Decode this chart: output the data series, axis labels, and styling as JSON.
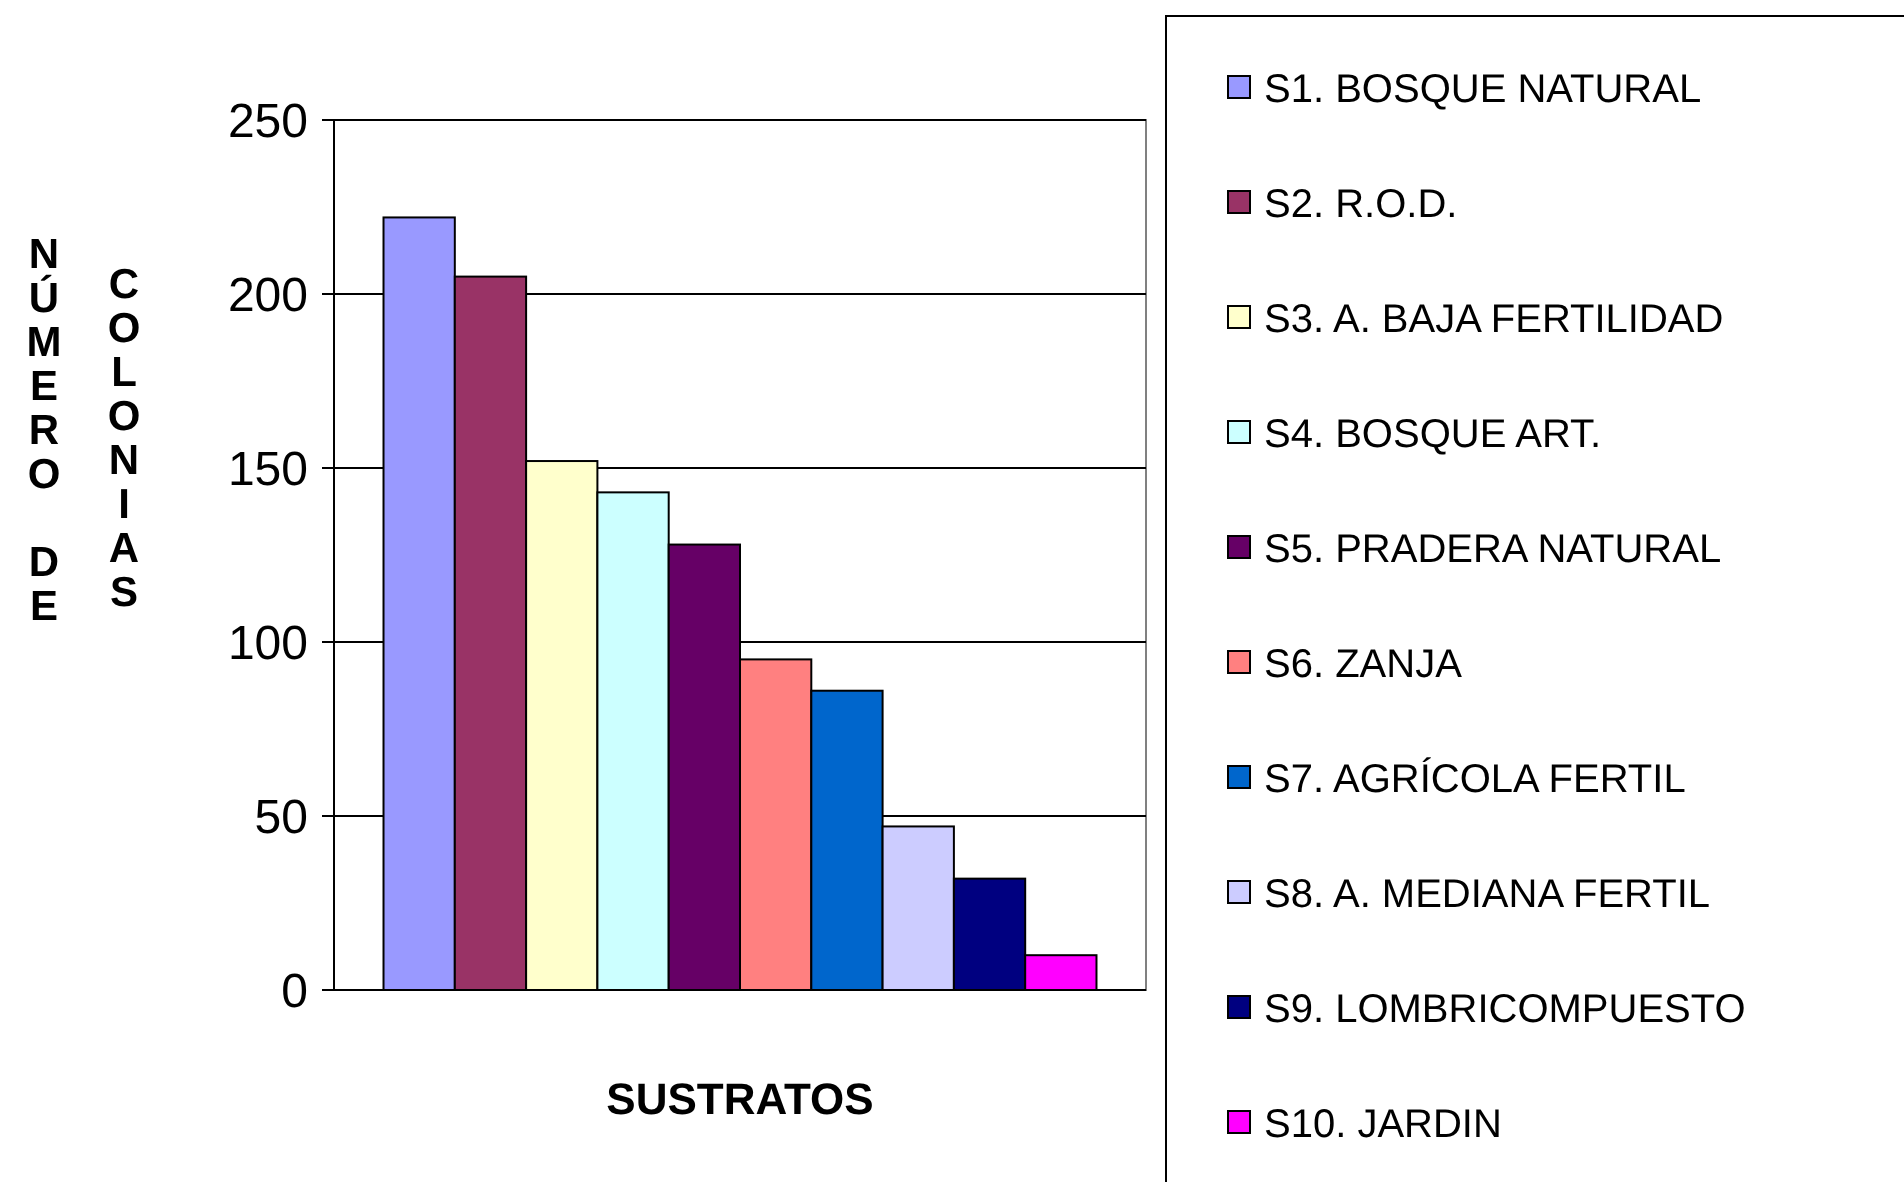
{
  "chart_data": {
    "type": "bar",
    "xlabel": "SUSTRATOS",
    "ylabel": "NÚMERO DE COLONIAS",
    "categories": [
      null
    ],
    "ylim": [
      0,
      250
    ],
    "yticks": [
      0,
      50,
      100,
      150,
      200,
      250
    ],
    "grid": "y",
    "legend": "right",
    "series": [
      {
        "name": "S1. BOSQUE NATURAL",
        "color": "#9999ff",
        "values": [
          222
        ]
      },
      {
        "name": "S2. R.O.D.",
        "color": "#993366",
        "values": [
          205
        ]
      },
      {
        "name": "S3. A. BAJA FERTILIDAD",
        "color": "#ffffcc",
        "values": [
          152
        ]
      },
      {
        "name": "S4. BOSQUE ART.",
        "color": "#ccffff",
        "values": [
          143
        ]
      },
      {
        "name": "S5. PRADERA NATURAL",
        "color": "#660066",
        "values": [
          128
        ]
      },
      {
        "name": "S6. ZANJA",
        "color": "#ff8080",
        "values": [
          95
        ]
      },
      {
        "name": "S7. AGRÍCOLA FERTIL",
        "color": "#0066cc",
        "values": [
          86
        ]
      },
      {
        "name": "S8. A. MEDIANA FERTIL",
        "color": "#ccccff",
        "values": [
          47
        ]
      },
      {
        "name": "S9. LOMBRICOMPUESTO",
        "color": "#000080",
        "values": [
          32
        ]
      },
      {
        "name": "S10. JARDIN",
        "color": "#ff00ff",
        "values": [
          10
        ]
      }
    ]
  }
}
